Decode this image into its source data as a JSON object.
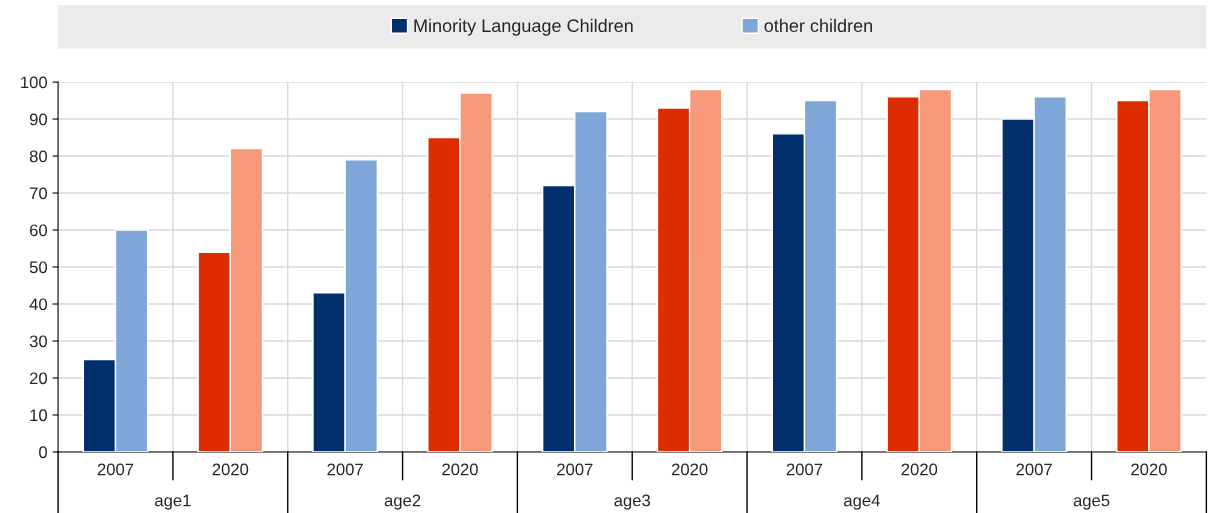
{
  "chart_data": {
    "type": "bar",
    "categories": [
      "2007",
      "2020",
      "2007",
      "2020",
      "2007",
      "2020",
      "2007",
      "2020",
      "2007",
      "2020"
    ],
    "series": [
      {
        "name": "Minority Language Children",
        "colors": [
          "#002f6c",
          "#dc2c00",
          "#002f6c",
          "#dc2c00",
          "#002f6c",
          "#dc2c00",
          "#002f6c",
          "#dc2c00",
          "#002f6c",
          "#dc2c00"
        ],
        "values": [
          25,
          54,
          43,
          85,
          72,
          93,
          86,
          96,
          90,
          95
        ]
      },
      {
        "name": "other children",
        "colors": [
          "#7fa6d9",
          "#f5997a",
          "#7fa6d9",
          "#f5997a",
          "#7fa6d9",
          "#f5997a",
          "#7fa6d9",
          "#f5997a",
          "#7fa6d9",
          "#f5997a"
        ],
        "values": [
          60,
          82,
          79,
          97,
          92,
          98,
          95,
          98,
          96,
          98
        ]
      }
    ],
    "annotations": [
      "age1",
      "age2",
      "age3",
      "age4",
      "age5"
    ],
    "ylim": [
      0,
      100
    ],
    "yticks": [
      0,
      10,
      20,
      30,
      40,
      50,
      60,
      70,
      80,
      90,
      100
    ],
    "grid": "y",
    "legend": "top"
  }
}
